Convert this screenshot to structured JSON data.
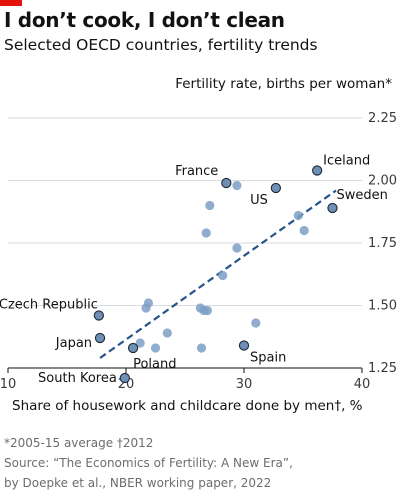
{
  "header": {
    "title": "I don’t cook, I don’t clean",
    "subtitle": "Selected OECD countries, fertility trends"
  },
  "colors": {
    "accent_red": "#e3120b",
    "point_light": "#7d9fc6",
    "point_dark": "#6f8fb5",
    "trend": "#27548a"
  },
  "chart_data": {
    "type": "scatter",
    "title": "I don’t cook, I don’t clean",
    "subtitle": "Selected OECD countries, fertility trends",
    "ylabel": "Fertility rate, births per woman*",
    "xlabel": "Share of housework and childcare done by men†, %",
    "xlim": [
      10,
      40
    ],
    "ylim": [
      1.25,
      2.25
    ],
    "xticks": [
      "10",
      "20",
      "30",
      "40"
    ],
    "yticks": [
      "1.25",
      "1.50",
      "1.75",
      "2.00",
      "2.25"
    ],
    "grid": "horizontal",
    "labeled_points": [
      {
        "label": "France",
        "x": 28.5,
        "y": 1.99
      },
      {
        "label": "Iceland",
        "x": 36.2,
        "y": 2.04
      },
      {
        "label": "US",
        "x": 32.7,
        "y": 1.97
      },
      {
        "label": "Sweden",
        "x": 37.5,
        "y": 1.89
      },
      {
        "label": "Czech Republic",
        "x": 17.7,
        "y": 1.46
      },
      {
        "label": "Japan",
        "x": 17.8,
        "y": 1.37
      },
      {
        "label": "Poland",
        "x": 20.6,
        "y": 1.33
      },
      {
        "label": "Spain",
        "x": 30.0,
        "y": 1.34
      },
      {
        "label": "South Korea",
        "x": 19.9,
        "y": 1.21
      }
    ],
    "other_points": [
      {
        "x": 29.4,
        "y": 1.98
      },
      {
        "x": 27.1,
        "y": 1.9
      },
      {
        "x": 26.8,
        "y": 1.79
      },
      {
        "x": 29.4,
        "y": 1.73
      },
      {
        "x": 28.2,
        "y": 1.62
      },
      {
        "x": 34.6,
        "y": 1.86
      },
      {
        "x": 35.1,
        "y": 1.8
      },
      {
        "x": 21.9,
        "y": 1.51
      },
      {
        "x": 21.7,
        "y": 1.49
      },
      {
        "x": 26.3,
        "y": 1.49
      },
      {
        "x": 26.6,
        "y": 1.48
      },
      {
        "x": 26.9,
        "y": 1.48
      },
      {
        "x": 31.0,
        "y": 1.43
      },
      {
        "x": 23.5,
        "y": 1.39
      },
      {
        "x": 21.2,
        "y": 1.35
      },
      {
        "x": 22.5,
        "y": 1.33
      },
      {
        "x": 26.4,
        "y": 1.33
      }
    ],
    "trendline": {
      "x": [
        17.8,
        37.8
      ],
      "y": [
        1.29,
        1.96
      ],
      "style": "dashed"
    }
  },
  "footnotes": {
    "line1": "*2005-15 average   †2012",
    "line2": "Source: “The Economics of Fertility: A New Era”,",
    "line3": "by Doepke et al., NBER working paper, 2022"
  }
}
